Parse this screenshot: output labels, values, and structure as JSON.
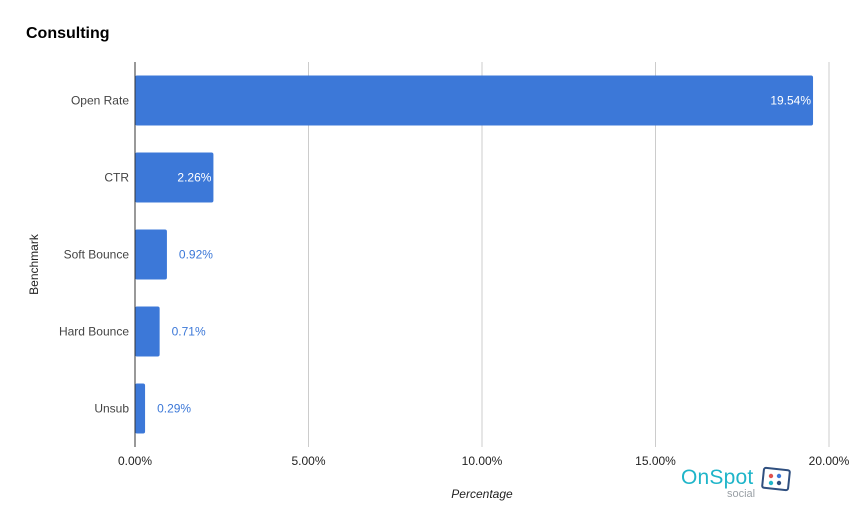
{
  "chart_data": {
    "type": "bar",
    "orientation": "horizontal",
    "title": "Consulting",
    "xlabel": "Percentage",
    "ylabel": "Benchmark",
    "categories": [
      "Open Rate",
      "CTR",
      "Soft Bounce",
      "Hard Bounce",
      "Unsub"
    ],
    "values": [
      19.54,
      2.26,
      0.92,
      0.71,
      0.29
    ],
    "data_labels": [
      "19.54%",
      "2.26%",
      "0.92%",
      "0.71%",
      "0.29%"
    ],
    "xlim": [
      0,
      20
    ],
    "xticks": [
      0,
      5,
      10,
      15,
      20
    ],
    "xtick_labels": [
      "0.00%",
      "5.00%",
      "10.00%",
      "15.00%",
      "20.00%"
    ],
    "grid": true,
    "bar_color": "#3c78d8"
  },
  "brand": {
    "name": "OnSpot",
    "sub": "social",
    "color": "#1fb5c9"
  }
}
